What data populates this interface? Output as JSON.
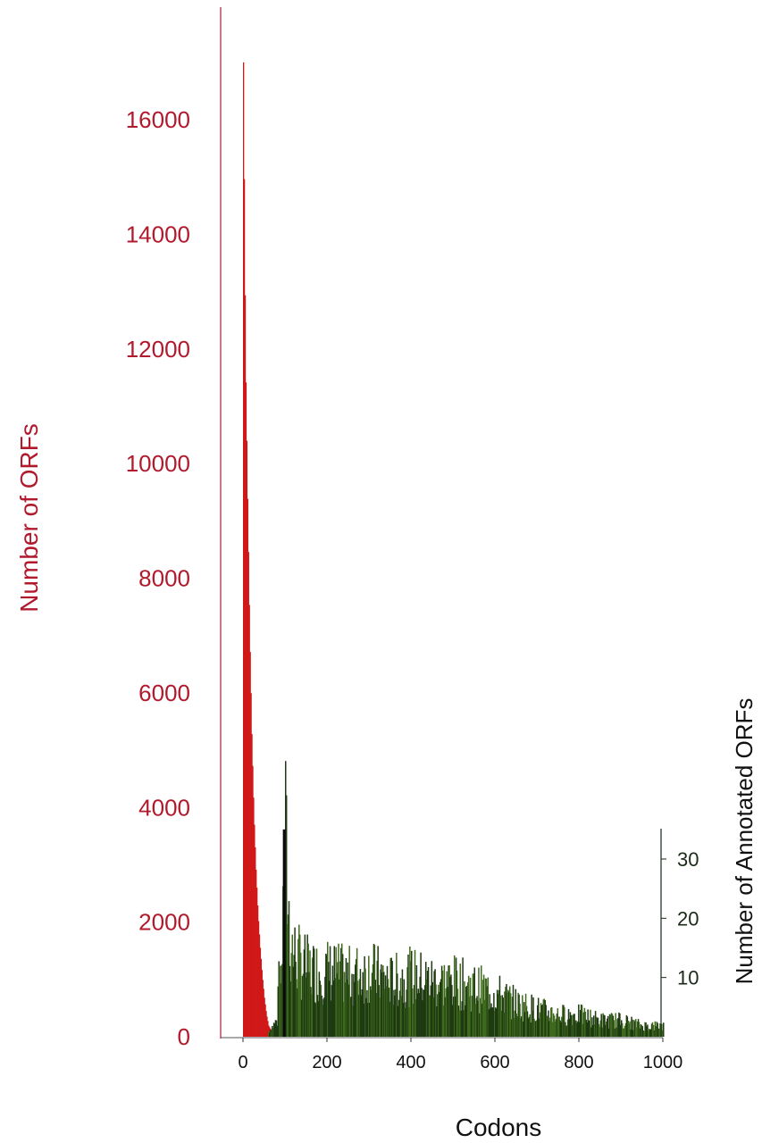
{
  "chart_data": {
    "type": "bar",
    "title": "",
    "xlabel": "Codons",
    "ylabel": "Number of ORFs",
    "y2label": "Number of Annotated ORFs",
    "xlim": [
      0,
      1000
    ],
    "ylim": [
      0,
      17000
    ],
    "y2lim": [
      0,
      35
    ],
    "x_ticks": [
      "0",
      "200",
      "400",
      "600",
      "800",
      "1000"
    ],
    "y_ticks": [
      "0",
      "2000",
      "4000",
      "6000",
      "8000",
      "10000",
      "12000",
      "14000",
      "16000"
    ],
    "y2_ticks": [
      "10",
      "20",
      "30"
    ],
    "colors": {
      "all_orfs": "#d01818",
      "annotated_orfs": "#1f3a12",
      "left_axis": "#b01a2c",
      "right_axis": "#1a2a1a"
    },
    "series": [
      {
        "name": "Number of ORFs",
        "axis": "left",
        "x": [
          0,
          5,
          10,
          15,
          20,
          25,
          30,
          35,
          40,
          45,
          50,
          55,
          60,
          70,
          80
        ],
        "values": [
          17000,
          12000,
          9500,
          7200,
          5400,
          4000,
          3000,
          2200,
          1600,
          1100,
          700,
          400,
          200,
          60,
          10
        ]
      },
      {
        "name": "Number of Annotated ORFs",
        "axis": "right",
        "x": [
          60,
          80,
          100,
          110,
          120,
          140,
          160,
          180,
          200,
          250,
          300,
          350,
          400,
          450,
          500,
          550,
          600,
          650,
          700,
          750,
          800,
          850,
          900,
          950,
          1000
        ],
        "values": [
          1,
          3,
          35,
          18,
          15,
          13,
          12,
          12,
          12,
          11,
          12,
          10,
          11,
          10,
          10,
          9,
          8,
          6,
          5,
          4,
          4,
          3,
          3,
          2,
          2
        ]
      }
    ]
  }
}
